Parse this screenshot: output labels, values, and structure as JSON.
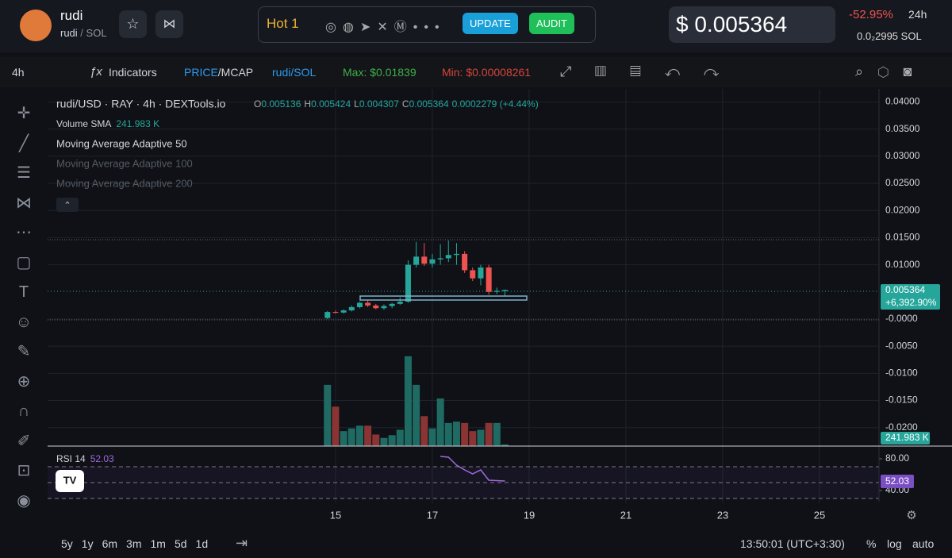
{
  "header": {
    "token_name": "rudi",
    "pair": "rudi",
    "quote": "SOL",
    "hot": "Hot 1",
    "update": "UPDATE",
    "audit": "AUDIT",
    "price": "$ 0.005364",
    "change": "-52.95%",
    "period": "24h",
    "sol_price": "0.0₂2995",
    "sol": "SOL"
  },
  "toolbar": {
    "interval": "4h",
    "indicators": "Indicators",
    "price": "PRICE",
    "mcap": "/MCAP",
    "pair": "rudi/SOL",
    "max": "Max: $0.01839",
    "min": "Min: $0.00008261"
  },
  "legend": {
    "symbol": "rudi/USD · RAY · 4h · DEXTools.io",
    "o": "O",
    "h": "H",
    "l": "L",
    "c": "C",
    "change": "0.0002279 (+4.44%)",
    "volume_sma": "Volume SMA",
    "volume_sma_value": "241.983 K",
    "ma": [
      "Moving Average Adaptive 50",
      "Moving Average Adaptive 100",
      "Moving Average Adaptive 200"
    ],
    "rsi": "RSI 14"
  },
  "axis_tags": {
    "price_change": "+6,392.90%",
    "volume": "241.983 K"
  },
  "footer": {
    "ranges": [
      "5y",
      "1y",
      "6m",
      "3m",
      "1m",
      "5d",
      "1d"
    ],
    "time": "13:50:01 (UTC+3:30)",
    "percent": "%",
    "log": "log",
    "auto": "auto"
  },
  "chart_data": {
    "type": "candlestick",
    "x": [
      14.833,
      15.0,
      15.167,
      15.333,
      15.5,
      15.667,
      15.833,
      16.0,
      16.167,
      16.333,
      16.5,
      16.667,
      16.833,
      17.0,
      17.167,
      17.333,
      17.5,
      17.667,
      17.833,
      18.0,
      18.167,
      18.333,
      18.5
    ],
    "open": [
      0.0002,
      0.0013,
      0.0012,
      0.0016,
      0.0022,
      0.003,
      0.0025,
      0.002,
      0.0024,
      0.0028,
      0.0032,
      0.01,
      0.0115,
      0.0102,
      0.011,
      0.0112,
      0.0118,
      0.012,
      0.009,
      0.0075,
      0.0095,
      0.005,
      0.005136
    ],
    "high": [
      0.0015,
      0.0016,
      0.0018,
      0.0025,
      0.0032,
      0.0034,
      0.0028,
      0.0027,
      0.003,
      0.004,
      0.0108,
      0.0142,
      0.014,
      0.012,
      0.0138,
      0.0145,
      0.014,
      0.0125,
      0.0095,
      0.01,
      0.01,
      0.0058,
      0.005424
    ],
    "low": [
      0.0,
      0.001,
      0.001,
      0.0014,
      0.002,
      0.0022,
      0.0018,
      0.0017,
      0.002,
      0.0026,
      0.003,
      0.0095,
      0.0098,
      0.0095,
      0.01,
      0.0105,
      0.01,
      0.0085,
      0.007,
      0.0062,
      0.0045,
      0.0046,
      0.004307
    ],
    "close": [
      0.0013,
      0.0012,
      0.0016,
      0.0022,
      0.003,
      0.0025,
      0.002,
      0.0024,
      0.0028,
      0.0032,
      0.01,
      0.0115,
      0.0102,
      0.011,
      0.0112,
      0.0118,
      0.012,
      0.009,
      0.0075,
      0.0095,
      0.005,
      0.0052,
      0.005364
    ],
    "volume": [
      9000,
      5800,
      2200,
      2600,
      3000,
      3000,
      1700,
      1200,
      1600,
      2400,
      13200,
      9000,
      4400,
      2600,
      7000,
      3400,
      3600,
      3400,
      2200,
      2400,
      3400,
      3400,
      241.983
    ],
    "volume_ylim": [
      0,
      14000
    ],
    "up_color": "#26a69a",
    "down_color": "#ef5350",
    "up_volume_color": "#1f6b64",
    "down_volume_color": "#8a3434",
    "xlim": [
      9.05,
      26.23
    ],
    "xticks": [
      15,
      17,
      19,
      21,
      23,
      25
    ],
    "ylim": [
      -0.0234,
      0.0424
    ],
    "yticks": [
      {
        "value": 0.04,
        "label": "0.04000"
      },
      {
        "value": 0.035,
        "label": "0.03500"
      },
      {
        "value": 0.03,
        "label": "0.03000"
      },
      {
        "value": 0.025,
        "label": "0.02500"
      },
      {
        "value": 0.02,
        "label": "0.02000"
      },
      {
        "value": 0.015,
        "label": "0.01500"
      },
      {
        "value": 0.01,
        "label": "0.01000"
      },
      {
        "value": 0,
        "label": "-0.0000"
      },
      {
        "value": -0.005,
        "label": "-0.0050"
      },
      {
        "value": -0.01,
        "label": "-0.0100"
      },
      {
        "value": -0.015,
        "label": "-0.0150"
      },
      {
        "value": -0.02,
        "label": "-0.0200"
      }
    ],
    "rsi": {
      "x": [
        17.167,
        17.333,
        17.5,
        17.667,
        17.833,
        18.0,
        18.167,
        18.333,
        18.5
      ],
      "values": [
        83,
        82,
        72,
        66,
        61,
        66,
        53,
        52.5,
        52.03
      ],
      "color": "#9c6ade",
      "ylim": [
        24,
        94
      ],
      "yticks": [
        {
          "value": 80,
          "label": "80.00"
        },
        {
          "value": 40,
          "label": "40.00"
        }
      ],
      "bands": [
        30,
        50,
        70
      ]
    }
  }
}
